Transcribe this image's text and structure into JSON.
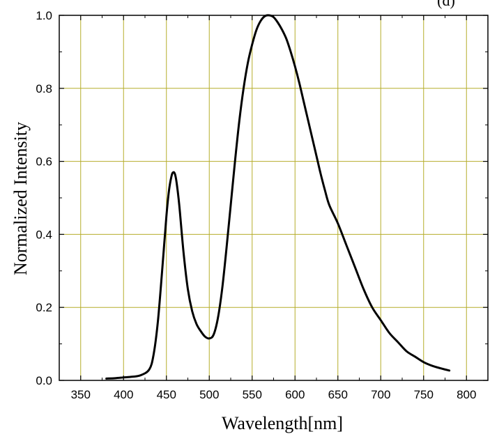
{
  "chart_data": {
    "type": "line",
    "title": "",
    "xlabel": "Wavelength[nm]",
    "ylabel": "Normalized Intensity",
    "xlim": [
      325,
      825
    ],
    "ylim": [
      0.0,
      1.0
    ],
    "xticks": [
      350,
      400,
      450,
      500,
      550,
      600,
      650,
      700,
      750,
      800
    ],
    "yticks": [
      0.0,
      0.2,
      0.4,
      0.6,
      0.8,
      1.0
    ],
    "xtick_labels": [
      "350",
      "400",
      "450",
      "500",
      "550",
      "600",
      "650",
      "700",
      "750",
      "800"
    ],
    "ytick_labels": [
      "0.0",
      "0.2",
      "0.4",
      "0.6",
      "0.8",
      "1.0"
    ],
    "grid": true,
    "top_partial_text": "(d)",
    "colors": {
      "grid": "#b5ad2a",
      "line": "#000000",
      "axes": "#000000"
    },
    "series": [
      {
        "x": [
          380,
          390,
          400,
          410,
          420,
          430,
          435,
          440,
          445,
          450,
          453,
          456,
          458,
          460,
          462,
          465,
          470,
          475,
          480,
          485,
          490,
          495,
          500,
          505,
          510,
          515,
          520,
          525,
          530,
          535,
          540,
          545,
          550,
          555,
          560,
          565,
          570,
          575,
          580,
          585,
          590,
          595,
          600,
          605,
          610,
          615,
          620,
          625,
          630,
          635,
          640,
          650,
          660,
          670,
          680,
          690,
          700,
          710,
          720,
          730,
          740,
          750,
          760,
          770,
          780
        ],
        "y": [
          0.005,
          0.006,
          0.008,
          0.01,
          0.014,
          0.03,
          0.07,
          0.16,
          0.3,
          0.45,
          0.52,
          0.56,
          0.57,
          0.565,
          0.54,
          0.48,
          0.35,
          0.25,
          0.19,
          0.155,
          0.135,
          0.12,
          0.115,
          0.125,
          0.17,
          0.25,
          0.36,
          0.48,
          0.6,
          0.71,
          0.8,
          0.87,
          0.92,
          0.96,
          0.985,
          0.998,
          1.0,
          0.995,
          0.98,
          0.96,
          0.935,
          0.9,
          0.86,
          0.815,
          0.765,
          0.715,
          0.665,
          0.615,
          0.565,
          0.52,
          0.48,
          0.43,
          0.37,
          0.31,
          0.25,
          0.2,
          0.165,
          0.13,
          0.105,
          0.08,
          0.065,
          0.05,
          0.04,
          0.033,
          0.027
        ]
      }
    ]
  }
}
